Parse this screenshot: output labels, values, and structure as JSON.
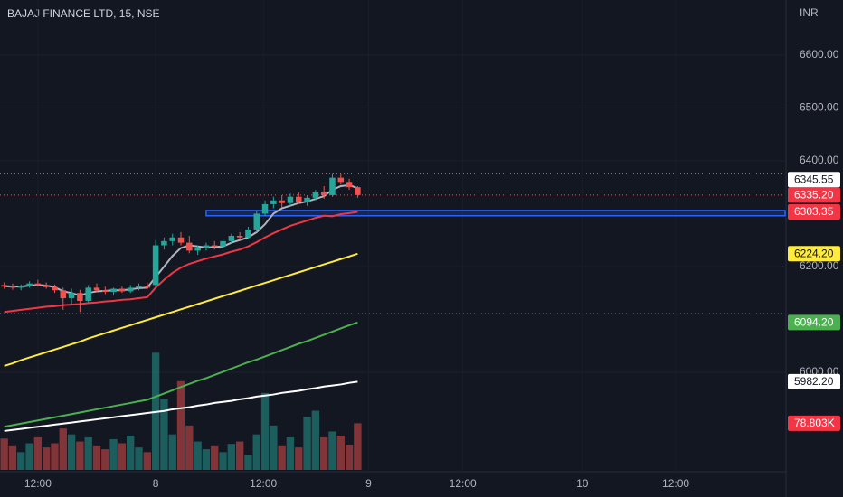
{
  "chart_data": {
    "type": "candlestick",
    "title": "BAJAJ FINANCE LTD, 15, NSE",
    "currency": "INR",
    "xlim": [
      -0.5,
      92.8
    ],
    "ylim": [
      5812,
      6704
    ],
    "yticks": [
      {
        "value": 6600,
        "label": "6600.00"
      },
      {
        "value": 6500,
        "label": "6500.00"
      },
      {
        "value": 6400,
        "label": "6400.00"
      },
      {
        "value": 6200,
        "label": "6200.00"
      },
      {
        "value": 6000,
        "label": "6000.00"
      }
    ],
    "xticks": [
      {
        "value": 4,
        "label": "12:00"
      },
      {
        "value": 18,
        "label": "8"
      },
      {
        "value": 30.8,
        "label": "12:00"
      },
      {
        "value": 43.3,
        "label": "9"
      },
      {
        "value": 54.5,
        "label": "12:00"
      },
      {
        "value": 68.7,
        "label": "10"
      },
      {
        "value": 79.8,
        "label": "12:00"
      }
    ],
    "up_color": "#26a69a",
    "down_color": "#ef5350",
    "candles": {
      "open": [
        6165,
        6162,
        6160,
        6163,
        6168,
        6165,
        6161,
        6155,
        6140,
        6150,
        6135,
        6160,
        6155,
        6152,
        6158,
        6153,
        6160,
        6163,
        6165,
        6240,
        6248,
        6255,
        6245,
        6230,
        6235,
        6240,
        6238,
        6248,
        6258,
        6255,
        6270,
        6300,
        6318,
        6325,
        6320,
        6332,
        6322,
        6330,
        6340,
        6335,
        6368,
        6360,
        6350
      ],
      "high": [
        6170,
        6168,
        6166,
        6172,
        6175,
        6170,
        6166,
        6160,
        6158,
        6156,
        6165,
        6168,
        6162,
        6160,
        6162,
        6165,
        6168,
        6170,
        6250,
        6255,
        6262,
        6265,
        6258,
        6240,
        6245,
        6248,
        6252,
        6262,
        6265,
        6275,
        6305,
        6325,
        6332,
        6335,
        6338,
        6340,
        6335,
        6345,
        6352,
        6375,
        6375,
        6366,
        6352
      ],
      "low": [
        6158,
        6156,
        6155,
        6160,
        6162,
        6158,
        6150,
        6118,
        6128,
        6114,
        6132,
        6152,
        6148,
        6145,
        6150,
        6150,
        6155,
        6157,
        6160,
        6232,
        6240,
        6240,
        6225,
        6222,
        6230,
        6232,
        6235,
        6244,
        6250,
        6252,
        6265,
        6295,
        6310,
        6312,
        6315,
        6318,
        6315,
        6325,
        6328,
        6332,
        6355,
        6345,
        6330
      ],
      "close": [
        6162,
        6160,
        6163,
        6168,
        6165,
        6161,
        6155,
        6140,
        6150,
        6135,
        6160,
        6155,
        6152,
        6158,
        6153,
        6160,
        6163,
        6160,
        6240,
        6248,
        6255,
        6245,
        6230,
        6235,
        6240,
        6238,
        6248,
        6258,
        6255,
        6270,
        6300,
        6318,
        6325,
        6320,
        6332,
        6322,
        6330,
        6340,
        6335,
        6368,
        6360,
        6350,
        6335.2
      ],
      "volume": [
        53000,
        40000,
        30000,
        45000,
        55000,
        38000,
        45000,
        70000,
        60000,
        48000,
        55000,
        40000,
        35000,
        52000,
        45000,
        58000,
        38000,
        30000,
        198000,
        120000,
        60000,
        150000,
        75000,
        48000,
        35000,
        40000,
        30000,
        44000,
        48000,
        25000,
        60000,
        130000,
        75000,
        40000,
        55000,
        38000,
        90000,
        100000,
        55000,
        65000,
        58000,
        42000,
        78803
      ]
    },
    "volume_ylim": [
      0,
      200000
    ],
    "series": [
      {
        "color": "#b2b5be",
        "values": [
          6163,
          6162,
          6162,
          6164,
          6165,
          6164,
          6161,
          6153,
          6150,
          6145,
          6150,
          6153,
          6154,
          6155,
          6155,
          6157,
          6159,
          6160,
          6180,
          6200,
          6220,
          6235,
          6240,
          6238,
          6236,
          6237,
          6238,
          6245,
          6250,
          6255,
          6265,
          6280,
          6300,
          6310,
          6315,
          6320,
          6323,
          6328,
          6333,
          6345,
          6352,
          6354,
          6348
        ]
      },
      {
        "color": "#f23645",
        "values": [
          6114,
          6116,
          6118,
          6120,
          6122,
          6124,
          6125,
          6127,
          6128,
          6129,
          6131,
          6132,
          6134,
          6135,
          6137,
          6138,
          6140,
          6142,
          6160,
          6175,
          6188,
          6198,
          6205,
          6210,
          6215,
          6219,
          6223,
          6228,
          6232,
          6238,
          6246,
          6255,
          6263,
          6270,
          6277,
          6282,
          6287,
          6292,
          6296,
          6295,
          6299,
          6301,
          6303.35
        ]
      },
      {
        "color": "#ffeb3b",
        "values": [
          6012,
          6017,
          6023,
          6028,
          6033,
          6038,
          6043,
          6048,
          6053,
          6058,
          6064,
          6069,
          6074,
          6079,
          6084,
          6089,
          6094,
          6099,
          6104,
          6109,
          6114,
          6119,
          6124,
          6129,
          6134,
          6139,
          6144,
          6149,
          6154,
          6159,
          6164,
          6169,
          6174,
          6179,
          6184,
          6189,
          6194,
          6199,
          6204,
          6209,
          6214,
          6219,
          6224.2
        ]
      },
      {
        "color": "#4caf50",
        "values": [
          5897,
          5900,
          5903,
          5906,
          5909,
          5912,
          5915,
          5918,
          5921,
          5924,
          5927,
          5930,
          5933,
          5936,
          5939,
          5942,
          5945,
          5948,
          5954,
          5960,
          5966,
          5972,
          5978,
          5984,
          5989,
          5995,
          6001,
          6007,
          6013,
          6019,
          6024,
          6030,
          6036,
          6042,
          6048,
          6054,
          6059,
          6065,
          6071,
          6077,
          6083,
          6089,
          6094.2
        ]
      },
      {
        "color": "#ffffff",
        "values": [
          5889,
          5891,
          5893,
          5895,
          5897,
          5899,
          5901,
          5903,
          5905,
          5907,
          5909,
          5911,
          5913,
          5915,
          5917,
          5919,
          5921,
          5923,
          5925,
          5927,
          5930,
          5932,
          5934,
          5937,
          5939,
          5942,
          5944,
          5946,
          5949,
          5951,
          5954,
          5956,
          5958,
          5961,
          5963,
          5965,
          5968,
          5970,
          5973,
          5975,
          5977,
          5980,
          5982.2
        ]
      }
    ],
    "hlines": [
      {
        "price": 6375,
        "color": "#787b86"
      },
      {
        "price": 6335.2,
        "color": "#ef5350"
      },
      {
        "price": 6111,
        "color": "#787b86"
      }
    ],
    "zone": {
      "from": 24,
      "top": 6306,
      "bottom": 6296,
      "color": "#2962ff"
    },
    "price_labels": [
      {
        "price": {
          "value": 6335.2,
          "label": "6335.20"
        },
        "bg": "#f23645",
        "fg": "#ffffff"
      },
      {
        "price": 6303.35,
        "bg": "#f23645",
        "fg": "#ffffff"
      },
      {
        "price": {
          "value": 6224.2,
          "label": "6224.20"
        },
        "bg": "#ffeb3b",
        "fg": "#131722"
      },
      {
        "price": {
          "value": 6094.2,
          "label": "6094.20"
        },
        "bg": "#4caf50",
        "fg": "#ffffff"
      },
      {
        "price": {
          "value": 5982.2,
          "label": "5982.20"
        },
        "bg": "#ffffff",
        "fg": "#131722"
      },
      {
        "price": 6345.55,
        "bg": "#ffffff",
        "fg": "#131722"
      }
    ],
    "volume_label": {
      "volume": {
        "value": 78803,
        "label": "78.803K"
      },
      "bg": "#f23645",
      "fg": "#ffffff"
    }
  }
}
